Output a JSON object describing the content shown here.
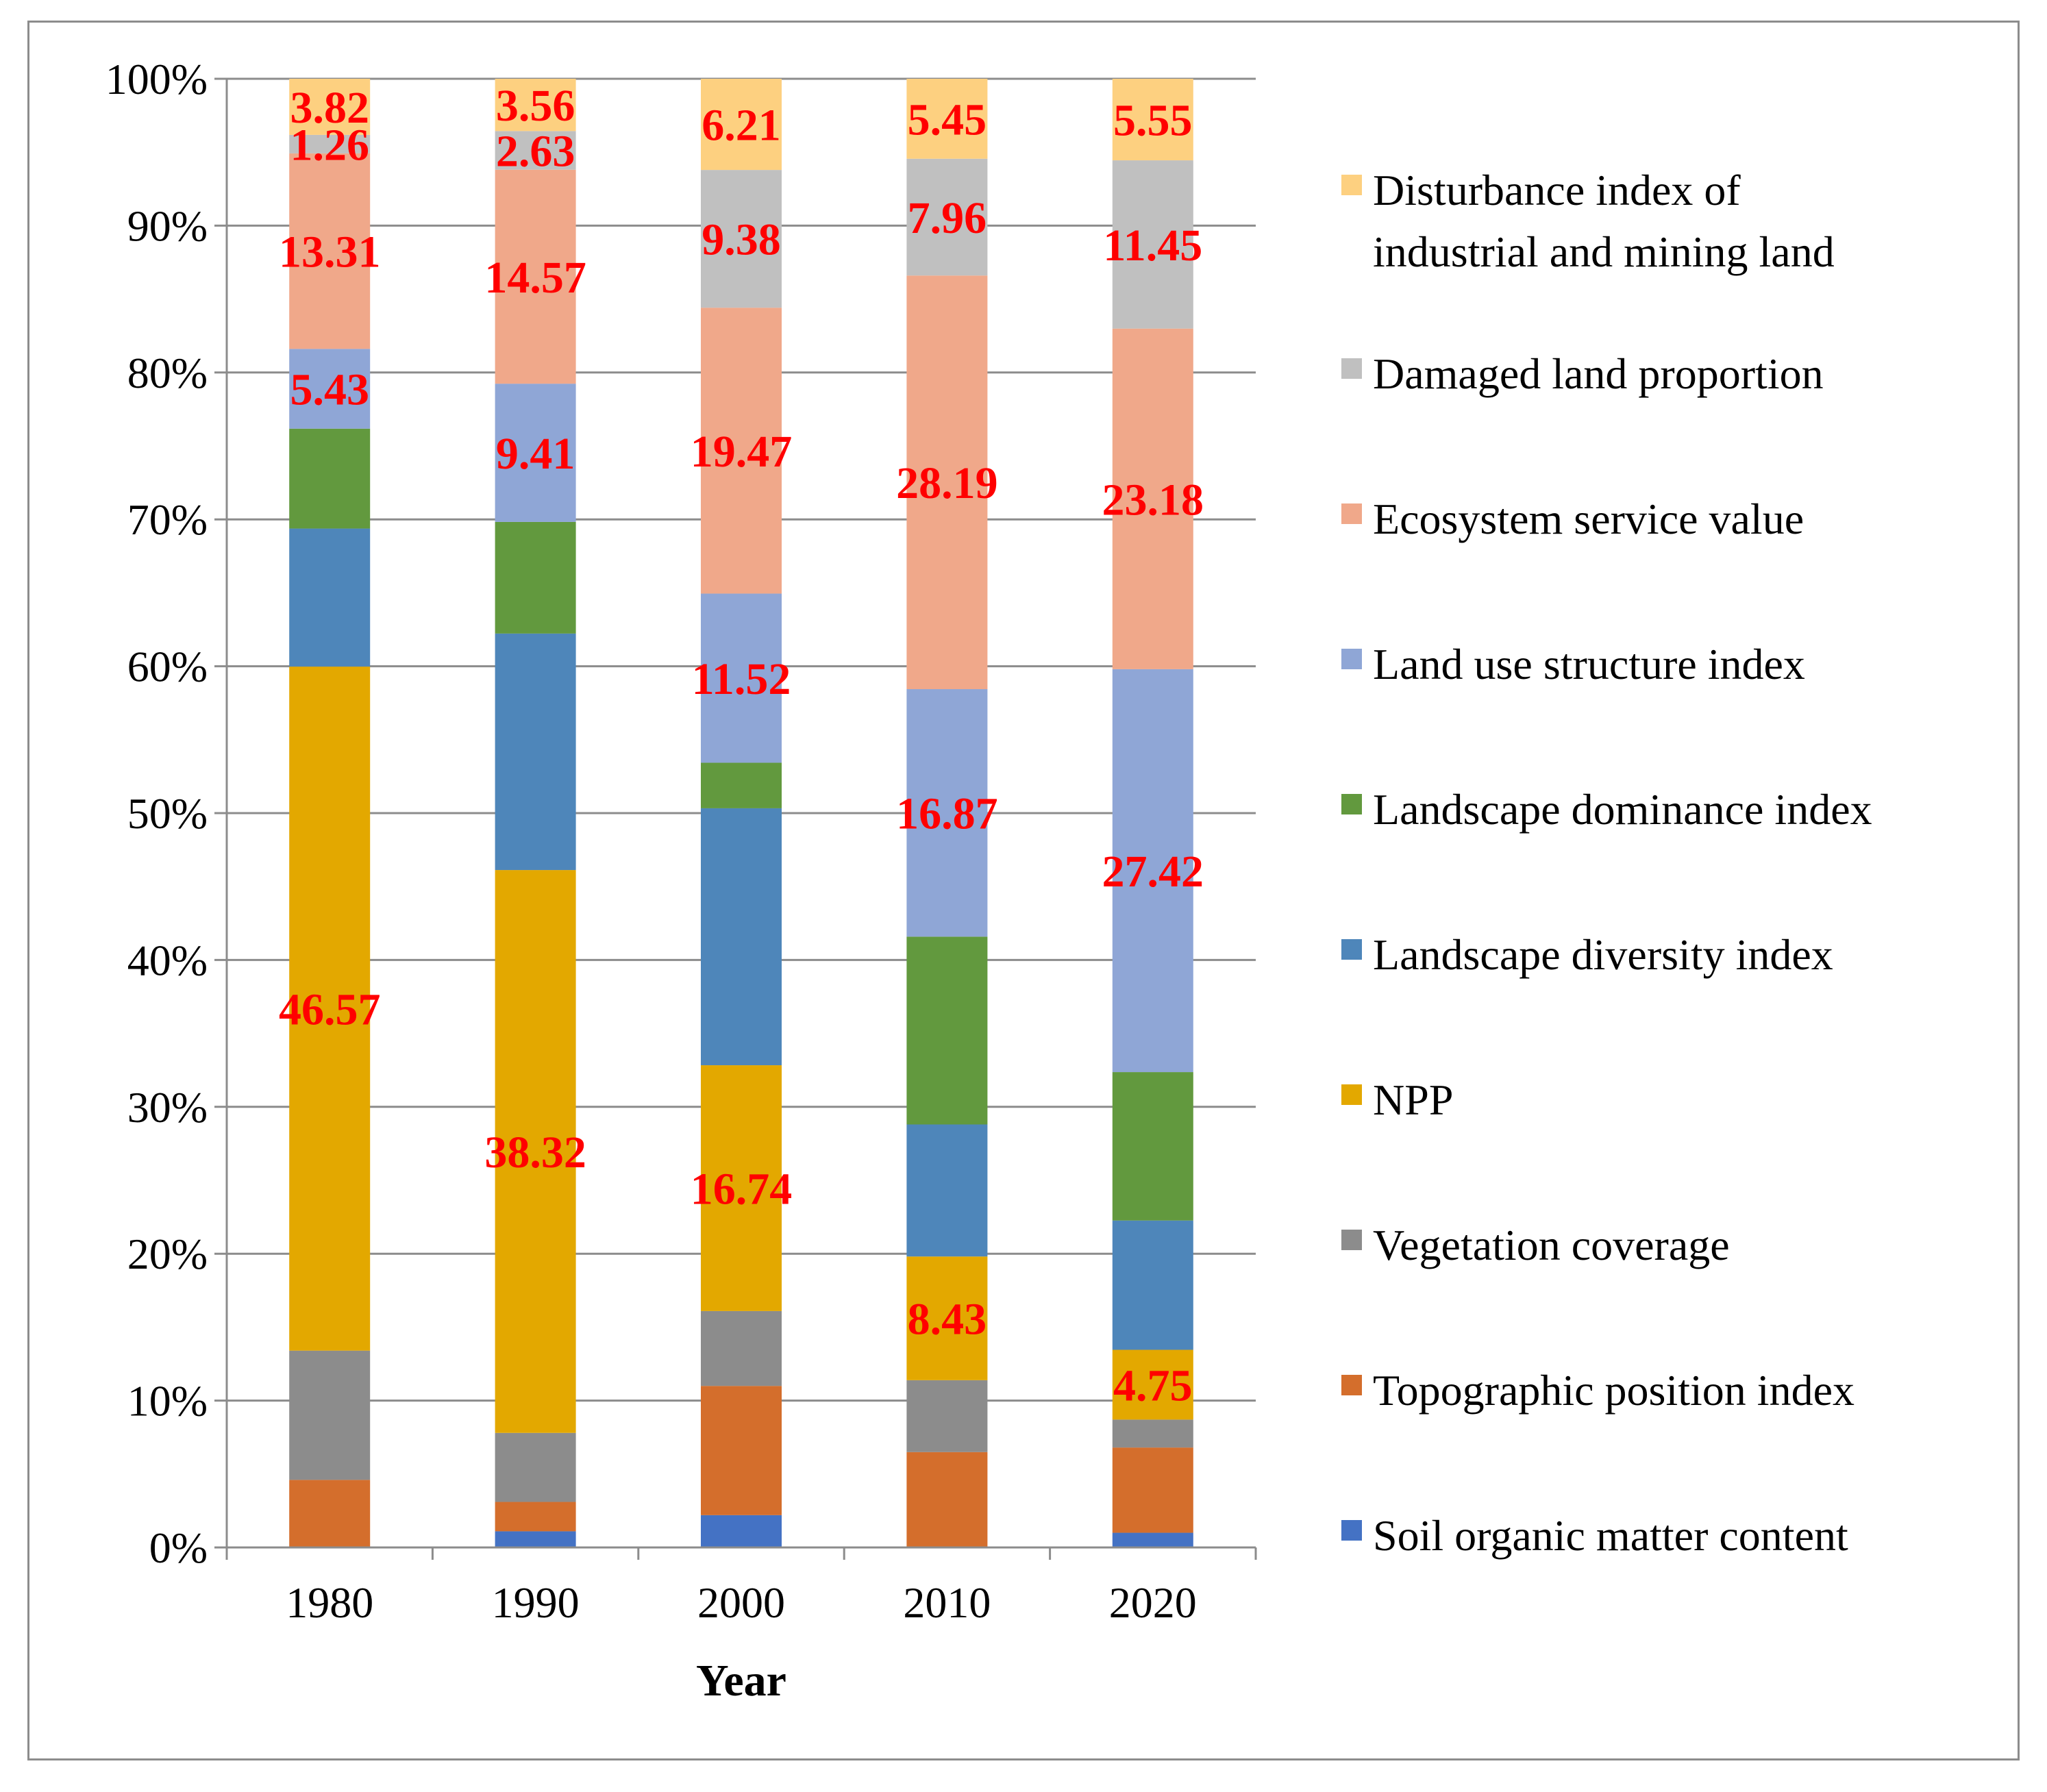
{
  "chart_data": {
    "type": "bar",
    "stacked": "percent",
    "title": "",
    "xlabel": "Year",
    "ylabel": "",
    "ylim": [
      0,
      100
    ],
    "ytick_labels": [
      "0%",
      "10%",
      "20%",
      "30%",
      "40%",
      "50%",
      "60%",
      "70%",
      "80%",
      "90%",
      "100%"
    ],
    "categories": [
      "1980",
      "1990",
      "2000",
      "2010",
      "2020"
    ],
    "legend_position": "right",
    "series": [
      {
        "name": "Soil organic matter content",
        "color": "#4472c4",
        "values": [
          0,
          1.1,
          2.2,
          0,
          1.0
        ],
        "labels": [
          "",
          "",
          "",
          "",
          ""
        ]
      },
      {
        "name": "Topographic position index",
        "color": "#d46e2c",
        "values": [
          4.6,
          2.0,
          8.8,
          6.5,
          5.8
        ],
        "labels": [
          "",
          "",
          "",
          "",
          ""
        ]
      },
      {
        "name": "Vegetation coverage",
        "color": "#8c8c8c",
        "values": [
          8.8,
          4.7,
          5.1,
          4.9,
          1.9
        ],
        "labels": [
          "",
          "",
          "",
          "",
          ""
        ]
      },
      {
        "name": "NPP",
        "color": "#e3a800",
        "values": [
          46.57,
          38.32,
          16.74,
          8.43,
          4.75
        ],
        "labels": [
          "46.57",
          "38.32",
          "16.74",
          "8.43",
          "4.75"
        ]
      },
      {
        "name": "Landscape diversity index",
        "color": "#4e86ba",
        "values": [
          9.4,
          16.1,
          17.5,
          9.0,
          8.8
        ],
        "labels": [
          "",
          "",
          "",
          "",
          ""
        ]
      },
      {
        "name": "Landscape dominance index",
        "color": "#62993e",
        "values": [
          6.8,
          7.6,
          3.1,
          12.8,
          10.1
        ],
        "labels": [
          "",
          "",
          "",
          "",
          ""
        ]
      },
      {
        "name": "Land use structure index",
        "color": "#8fa6d6",
        "values": [
          5.43,
          9.41,
          11.52,
          16.87,
          27.42
        ],
        "labels": [
          "5.43",
          "9.41",
          "11.52",
          "16.87",
          "27.42"
        ]
      },
      {
        "name": "Ecosystem service value",
        "color": "#f0a88a",
        "values": [
          13.31,
          14.57,
          19.47,
          28.19,
          23.18
        ],
        "labels": [
          "13.31",
          "14.57",
          "19.47",
          "28.19",
          "23.18"
        ]
      },
      {
        "name": "Damaged land proportion",
        "color": "#c0c0c0",
        "values": [
          1.26,
          2.63,
          9.38,
          7.96,
          11.45
        ],
        "labels": [
          "1.26",
          "2.63",
          "9.38",
          "7.96",
          "11.45"
        ]
      },
      {
        "name": "Disturbance index of industrial and mining land",
        "color": "#fdd080",
        "values": [
          3.82,
          3.56,
          6.21,
          5.45,
          5.55
        ],
        "labels": [
          "3.82",
          "3.56",
          "6.21",
          "5.45",
          "5.55"
        ]
      }
    ]
  }
}
